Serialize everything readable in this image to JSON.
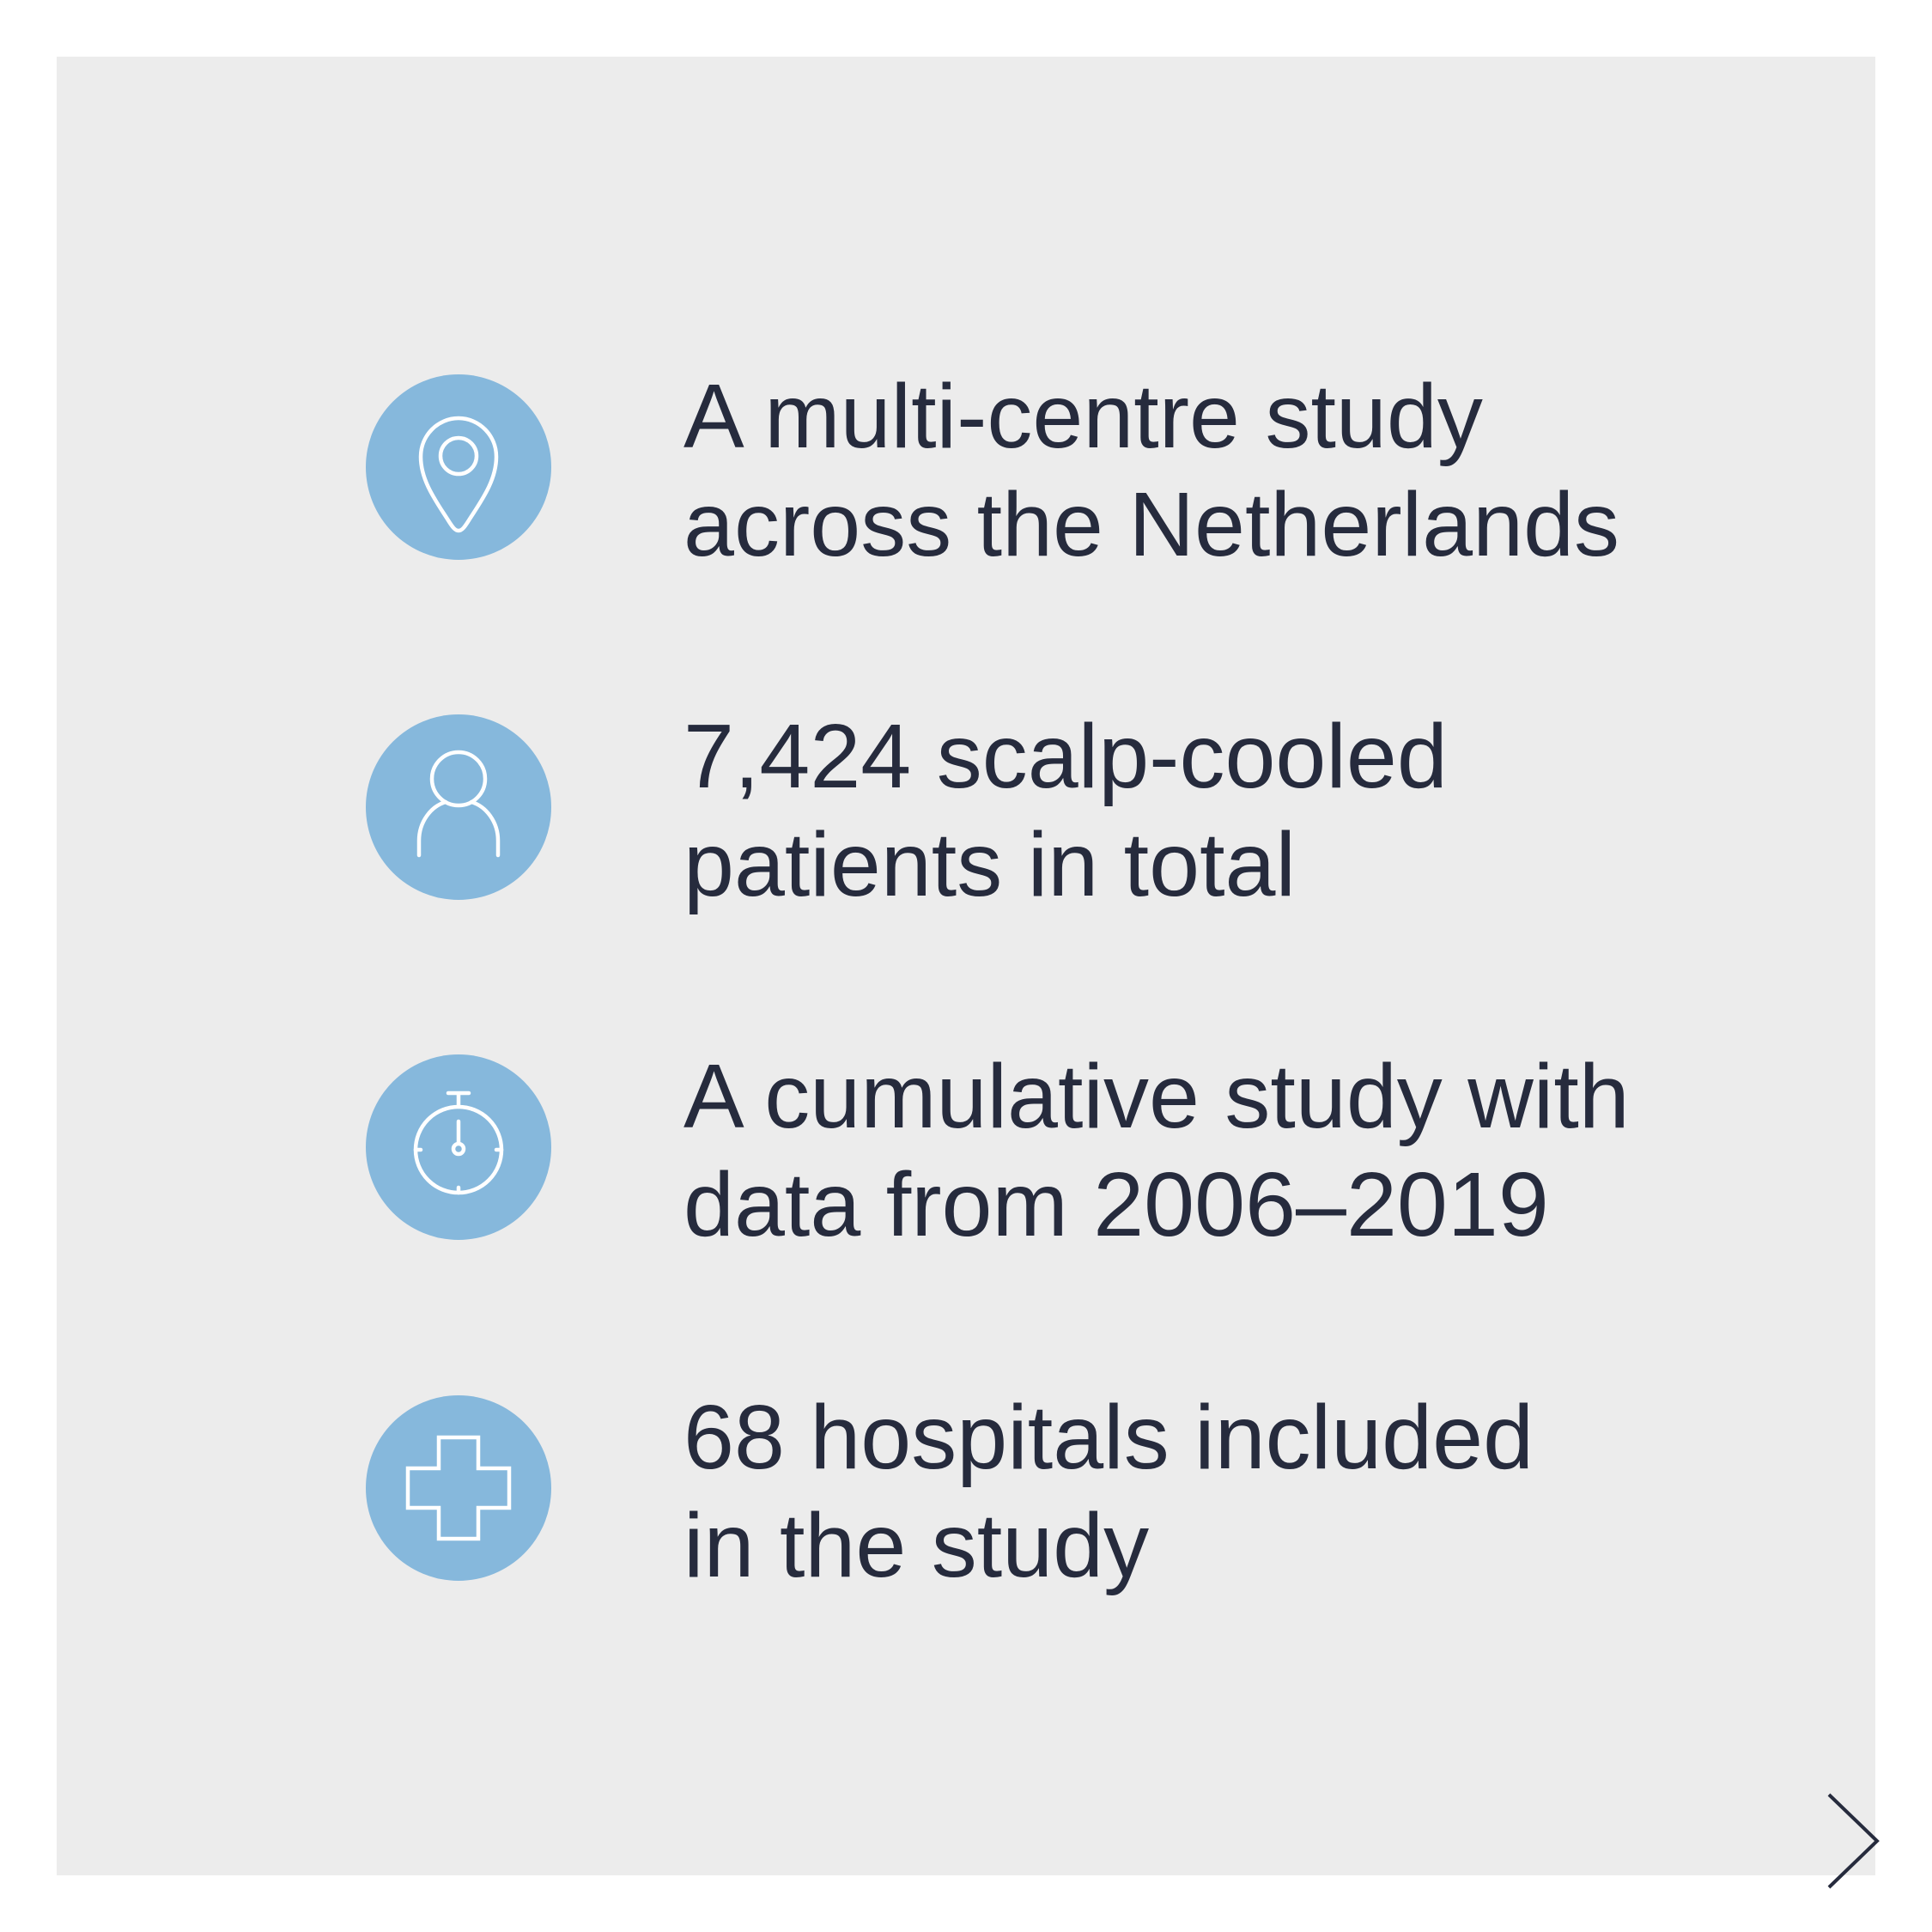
{
  "colors": {
    "background": "#ffffff",
    "panel": "#ececec",
    "icon_circle": "#86b8dc",
    "icon_stroke": "#ffffff",
    "text": "#262b3d",
    "arrow": "#262b3d"
  },
  "items": [
    {
      "icon": "location-pin-icon",
      "lines": [
        "A multi-centre study",
        "across the Netherlands"
      ]
    },
    {
      "icon": "person-icon",
      "lines": [
        "7,424 scalp-cooled",
        "patients in total"
      ]
    },
    {
      "icon": "stopwatch-icon",
      "lines": [
        "A cumulative study with",
        "data from 2006–2019"
      ]
    },
    {
      "icon": "medical-cross-icon",
      "lines": [
        "68 hospitals included",
        "in the study"
      ]
    }
  ],
  "navigation": {
    "next_icon": "chevron-right-icon"
  }
}
